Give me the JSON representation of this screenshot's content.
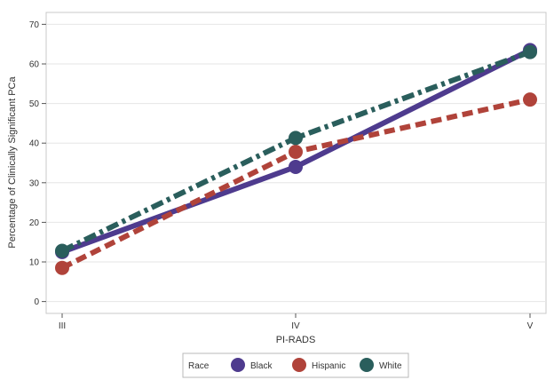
{
  "chart_data": {
    "type": "line",
    "title": "",
    "xlabel": "PI-RADS",
    "ylabel": "Percentage of Clinically Significant PCa",
    "categories": [
      "III",
      "IV",
      "V"
    ],
    "ylim": [
      -3,
      73
    ],
    "yticks": [
      0,
      10,
      20,
      30,
      40,
      50,
      60,
      70
    ],
    "grid": true,
    "legend": {
      "title": "Race",
      "placement": "bottom"
    },
    "series": [
      {
        "name": "Black",
        "values": [
          12.5,
          34,
          63.5
        ],
        "color": "#4e3b8e",
        "dash": "solid"
      },
      {
        "name": "Hispanic",
        "values": [
          8.5,
          37.8,
          51
        ],
        "color": "#b0433a",
        "dash": "dash"
      },
      {
        "name": "White",
        "values": [
          12.8,
          41.3,
          63
        ],
        "color": "#2a5e5c",
        "dash": "dashdot"
      }
    ]
  }
}
